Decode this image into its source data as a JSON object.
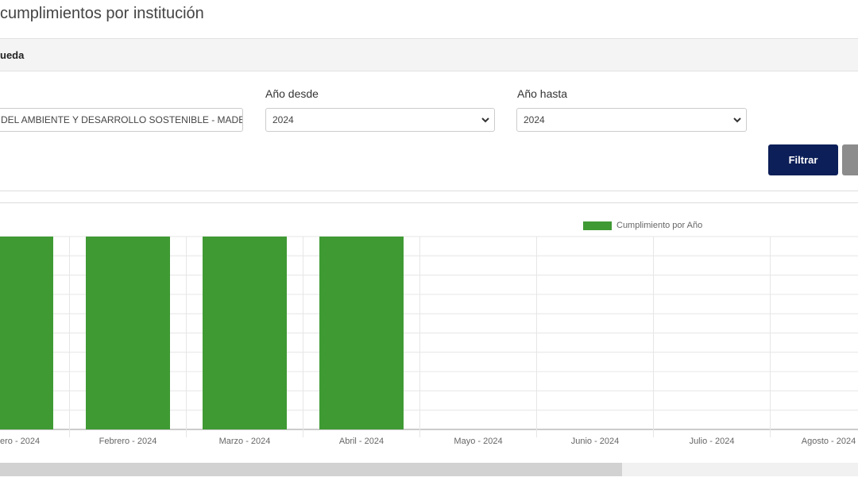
{
  "header": {
    "title": "cumplimientos por institución"
  },
  "search": {
    "title": "ueda",
    "institution": "DEL AMBIENTE Y DESARROLLO SOSTENIBLE - MADES",
    "year_from_label": "Año desde",
    "year_from": "2024",
    "year_to_label": "Año hasta",
    "year_to": "2024",
    "filter_button": "Filtrar"
  },
  "chart_data": {
    "type": "bar",
    "categories": [
      "ero - 2024",
      "Febrero - 2024",
      "Marzo - 2024",
      "Abril - 2024",
      "Mayo - 2024",
      "Junio - 2024",
      "Julio - 2024",
      "Agosto - 2024"
    ],
    "series": [
      {
        "name": "Cumplimiento por Año",
        "color": "#3f9a34",
        "values": [
          100,
          100,
          100,
          100,
          0,
          0,
          0,
          0
        ]
      }
    ],
    "ylim": [
      0,
      100
    ],
    "yticks": [
      0,
      10,
      20,
      30,
      40,
      50,
      60,
      70,
      80,
      90,
      100
    ],
    "grid": true
  }
}
